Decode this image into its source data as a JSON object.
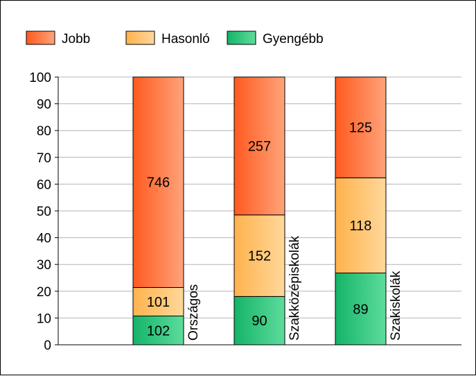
{
  "colors": {
    "Jobb": [
      "#ff5a1f",
      "#ffa37a"
    ],
    "Hasonló": [
      "#ffb24d",
      "#ffd89a"
    ],
    "Gyengébb": [
      "#14b468",
      "#5edc9c"
    ]
  },
  "chart_data": {
    "type": "bar",
    "stacked": true,
    "normalized": true,
    "categories": [
      "Országos",
      "Szakközépiskolák",
      "Szakiskolák"
    ],
    "series": [
      {
        "name": "Gyengébb",
        "values": [
          102,
          90,
          89
        ]
      },
      {
        "name": "Hasonló",
        "values": [
          101,
          152,
          118
        ]
      },
      {
        "name": "Jobb",
        "values": [
          746,
          257,
          125
        ]
      }
    ],
    "legend_order": [
      "Jobb",
      "Hasonló",
      "Gyengébb"
    ],
    "legend_position": "top-left",
    "ylim": [
      0,
      100
    ],
    "yticks": [
      "0",
      "10",
      "20",
      "30",
      "40",
      "50",
      "60",
      "70",
      "80",
      "90",
      "100"
    ],
    "grid": true,
    "title": "",
    "xlabel": "",
    "ylabel": ""
  }
}
